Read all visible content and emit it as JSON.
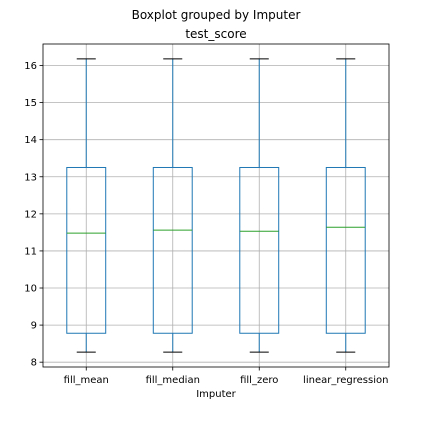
{
  "chart_data": {
    "type": "boxplot",
    "suptitle": "Boxplot grouped by Imputer",
    "title": "test_score",
    "xlabel": "Imputer",
    "ylabel": "",
    "categories": [
      "fill_mean",
      "fill_median",
      "fill_zero",
      "linear_regression"
    ],
    "boxes": [
      {
        "whisker_low": 8.27,
        "q1": 8.78,
        "median": 11.48,
        "q3": 13.25,
        "whisker_high": 16.18
      },
      {
        "whisker_low": 8.27,
        "q1": 8.78,
        "median": 11.56,
        "q3": 13.25,
        "whisker_high": 16.18
      },
      {
        "whisker_low": 8.27,
        "q1": 8.78,
        "median": 11.53,
        "q3": 13.25,
        "whisker_high": 16.18
      },
      {
        "whisker_low": 8.27,
        "q1": 8.78,
        "median": 11.64,
        "q3": 13.25,
        "whisker_high": 16.18
      }
    ],
    "ylim": [
      7.87,
      16.58
    ],
    "yticks": [
      8,
      9,
      10,
      11,
      12,
      13,
      14,
      15,
      16
    ],
    "grid": true,
    "colors": {
      "box": "#1f77b4",
      "median": "#2ca02c",
      "whisker": "#000000",
      "grid": "#b0b0b0"
    }
  }
}
